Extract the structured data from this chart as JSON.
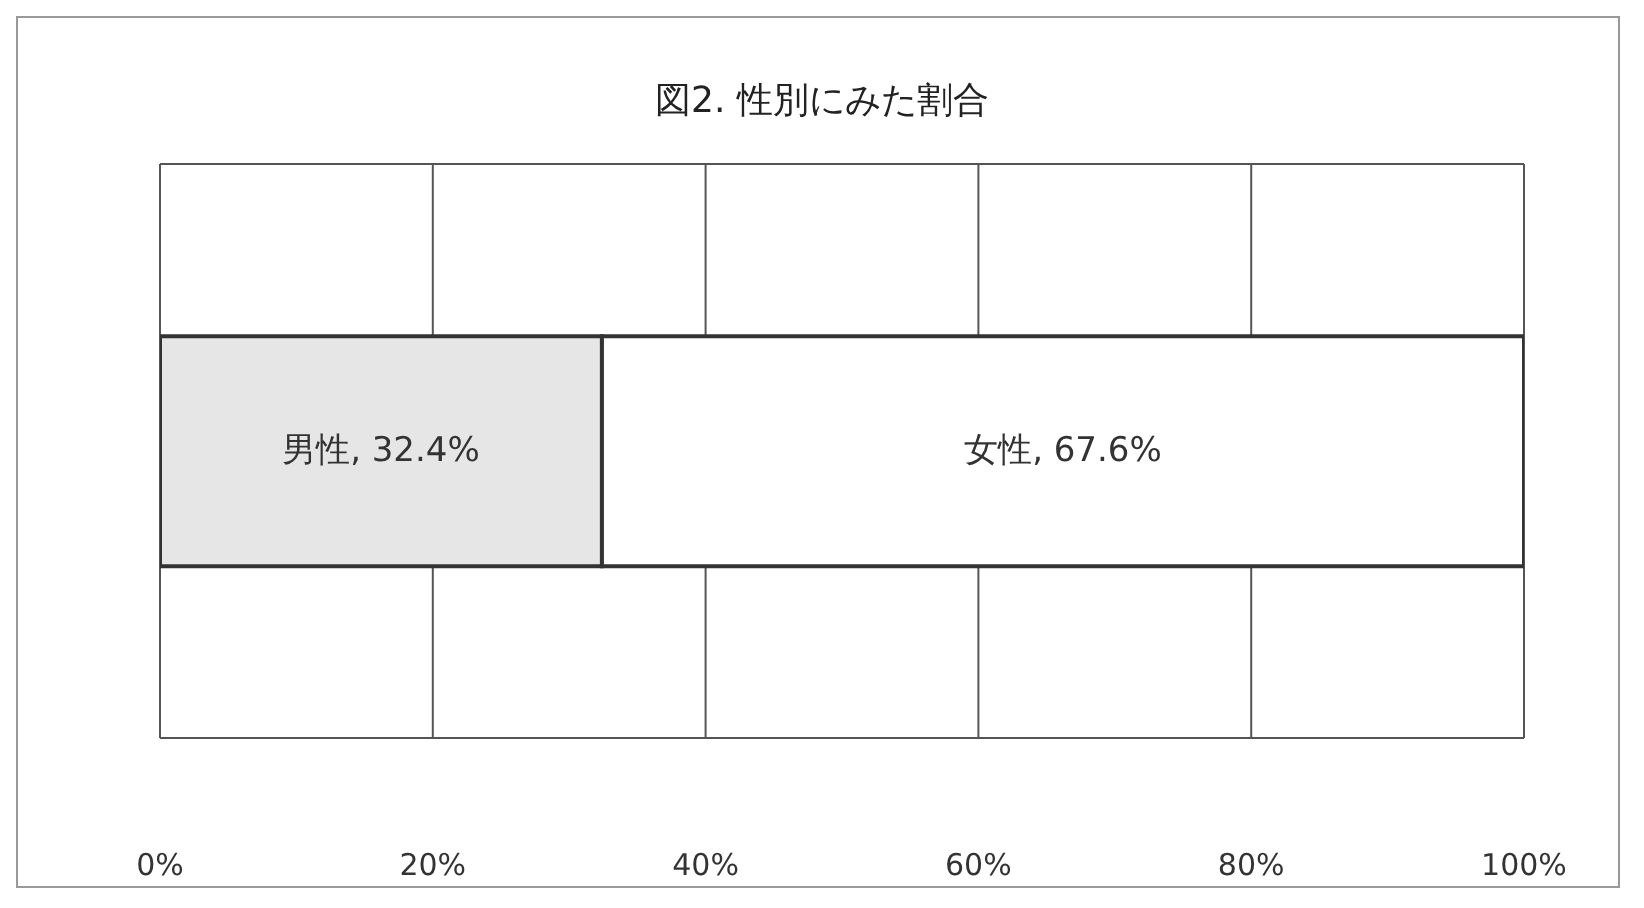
{
  "chart_data": {
    "type": "bar",
    "orientation": "horizontal",
    "stacked": true,
    "title": "図2. 性別にみた割合",
    "categories": [
      null
    ],
    "series": [
      {
        "color": "#e6e6e6",
        "values": [
          32.4
        ],
        "value_labels": [
          "男性, 32.4%"
        ]
      },
      {
        "color": "#ffffff",
        "values": [
          67.6
        ],
        "value_labels": [
          "女性, 67.6%"
        ]
      }
    ],
    "xlim": [
      0,
      100
    ],
    "xticks": [
      {
        "value": 0,
        "label": "0%"
      },
      {
        "value": 20,
        "label": "20%"
      },
      {
        "value": 40,
        "label": "40%"
      },
      {
        "value": 60,
        "label": "60%"
      },
      {
        "value": 80,
        "label": "80%"
      },
      {
        "value": 100,
        "label": "100%"
      }
    ],
    "grid": "x",
    "tick_labels": "x",
    "legend": false
  }
}
